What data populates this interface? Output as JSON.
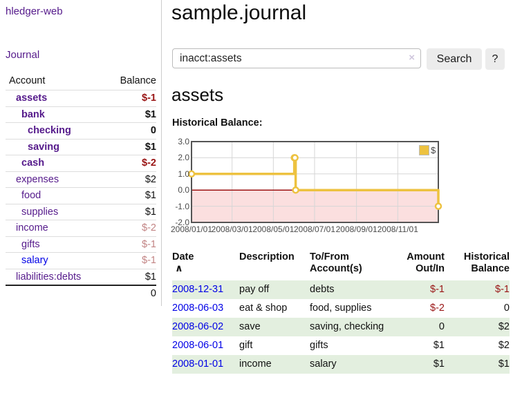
{
  "sidebar": {
    "brand": "hledger-web",
    "journal_link": "Journal",
    "headers": {
      "account": "Account",
      "balance": "Balance"
    },
    "accounts": [
      {
        "name": "assets",
        "balance": "$-1"
      },
      {
        "name": "bank",
        "balance": "$1"
      },
      {
        "name": "checking",
        "balance": "0"
      },
      {
        "name": "saving",
        "balance": "$1"
      },
      {
        "name": "cash",
        "balance": "$-2"
      },
      {
        "name": "expenses",
        "balance": "$2"
      },
      {
        "name": "food",
        "balance": "$1"
      },
      {
        "name": "supplies",
        "balance": "$1"
      },
      {
        "name": "income",
        "balance": "$-2"
      },
      {
        "name": "gifts",
        "balance": "$-1"
      },
      {
        "name": "salary",
        "balance": "$-1"
      },
      {
        "name": "liabilities:debts",
        "balance": "$1"
      }
    ],
    "total": "0"
  },
  "main": {
    "title": "sample.journal",
    "search": {
      "value": "inacct:assets",
      "clear_icon": "×",
      "button": "Search",
      "help_button": "?"
    },
    "heading": "assets",
    "chart_label": "Historical Balance:"
  },
  "register": {
    "headers": {
      "date": "Date",
      "sort_icon": "∧",
      "description": "Description",
      "account_line1": "To/From",
      "account_line2": "Account(s)",
      "amount_line1": "Amount",
      "amount_line2": "Out/In",
      "balance_line1": "Historical",
      "balance_line2": "Balance"
    },
    "rows": [
      {
        "date": "2008-12-31",
        "description": "pay off",
        "accounts": "debts",
        "amount": "$-1",
        "balance": "$-1"
      },
      {
        "date": "2008-06-03",
        "description": "eat & shop",
        "accounts": "food, supplies",
        "amount": "$-2",
        "balance": "0"
      },
      {
        "date": "2008-06-02",
        "description": "save",
        "accounts": "saving, checking",
        "amount": "0",
        "balance": "$2"
      },
      {
        "date": "2008-06-01",
        "description": "gift",
        "accounts": "gifts",
        "amount": "$1",
        "balance": "$2"
      },
      {
        "date": "2008-01-01",
        "description": "income",
        "accounts": "salary",
        "amount": "$1",
        "balance": "$1"
      }
    ]
  },
  "chart_data": {
    "type": "line",
    "title": "Historical Balance:",
    "step": true,
    "series": [
      {
        "name": "$",
        "color": "#edc240",
        "points": [
          [
            "2008-01-01",
            1
          ],
          [
            "2008-06-01",
            2
          ],
          [
            "2008-06-02",
            2
          ],
          [
            "2008-06-03",
            0
          ],
          [
            "2008-12-31",
            -1
          ]
        ]
      }
    ],
    "x_range": [
      "2008-01-01",
      "2008-12-31"
    ],
    "ylim": [
      -2,
      3
    ],
    "y_ticks": [
      3,
      2,
      1,
      0,
      -1,
      -2
    ],
    "y_tick_labels": [
      "3.0",
      "2.0",
      "1.0",
      "0.0",
      "-1.0",
      "-2.0"
    ],
    "x_ticks": [
      "2008-01-01",
      "2008-03-01",
      "2008-05-01",
      "2008-07-01",
      "2008-09-01",
      "2008-11-01"
    ],
    "x_tick_labels": [
      "2008/01/01",
      "2008/03/01",
      "2008/05/01",
      "2008/07/01",
      "2008/09/01",
      "2008/11/01"
    ],
    "legend": {
      "label": "$",
      "position": "top-right"
    },
    "grid": true,
    "negative_region_color": "#fbdfdf",
    "zero_line_color": "#9c1010",
    "border_color": "#545454"
  },
  "colors": {
    "link_visited": "#551a8b",
    "link_unvisited": "#0000e6",
    "negative_strong": "#991414",
    "negative_muted": "#c28484",
    "row_highlight": "#e3efdf",
    "series_gold": "#edc240"
  }
}
